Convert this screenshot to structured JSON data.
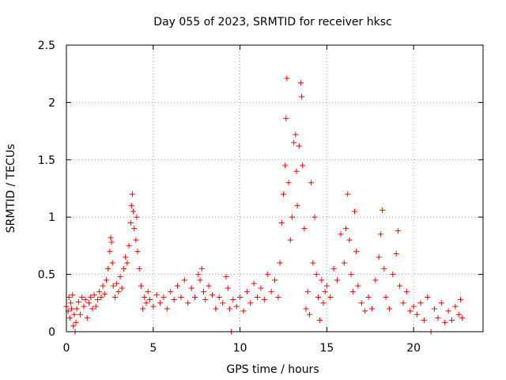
{
  "chart_data": {
    "type": "scatter",
    "title": "Day 055 of 2023, SRMTID for receiver hksc",
    "xlabel": "GPS time / hours",
    "ylabel": "SRMTID / TECUs",
    "xlim": [
      0,
      24
    ],
    "ylim": [
      0,
      2.5
    ],
    "xticks": [
      0,
      5,
      10,
      15,
      20
    ],
    "yticks": [
      0,
      0.5,
      1,
      1.5,
      2,
      2.5
    ],
    "xtick_labels": [
      "0",
      "5",
      "10",
      "15",
      "20"
    ],
    "ytick_labels": [
      "0",
      "0.5",
      "1",
      "1.5",
      "2",
      "2.5"
    ],
    "grid": true,
    "marker": "+",
    "color": "#ff0000",
    "series": [
      {
        "name": "SRMTID",
        "points": [
          [
            0.0,
            0.22
          ],
          [
            0.1,
            0.18
          ],
          [
            0.15,
            0.3
          ],
          [
            0.2,
            0.12
          ],
          [
            0.25,
            0.25
          ],
          [
            0.3,
            0.2
          ],
          [
            0.35,
            0.32
          ],
          [
            0.4,
            0.05
          ],
          [
            0.45,
            0.15
          ],
          [
            0.5,
            0.0
          ],
          [
            0.55,
            0.08
          ],
          [
            0.6,
            0.2
          ],
          [
            0.7,
            0.26
          ],
          [
            0.8,
            0.15
          ],
          [
            0.9,
            0.3
          ],
          [
            1.0,
            0.22
          ],
          [
            1.1,
            0.28
          ],
          [
            1.2,
            0.12
          ],
          [
            1.3,
            0.25
          ],
          [
            1.4,
            0.3
          ],
          [
            1.5,
            0.2
          ],
          [
            1.6,
            0.32
          ],
          [
            1.7,
            0.22
          ],
          [
            1.8,
            0.28
          ],
          [
            1.9,
            0.35
          ],
          [
            2.0,
            0.3
          ],
          [
            2.1,
            0.4
          ],
          [
            2.2,
            0.33
          ],
          [
            2.3,
            0.45
          ],
          [
            2.4,
            0.55
          ],
          [
            2.5,
            0.7
          ],
          [
            2.55,
            0.82
          ],
          [
            2.6,
            0.78
          ],
          [
            2.65,
            0.6
          ],
          [
            2.7,
            0.4
          ],
          [
            2.8,
            0.3
          ],
          [
            2.9,
            0.42
          ],
          [
            3.0,
            0.35
          ],
          [
            3.1,
            0.48
          ],
          [
            3.2,
            0.38
          ],
          [
            3.3,
            0.55
          ],
          [
            3.4,
            0.65
          ],
          [
            3.5,
            0.6
          ],
          [
            3.6,
            0.75
          ],
          [
            3.7,
            0.95
          ],
          [
            3.75,
            1.1
          ],
          [
            3.8,
            1.2
          ],
          [
            3.85,
            1.05
          ],
          [
            3.9,
            0.9
          ],
          [
            4.0,
            0.8
          ],
          [
            4.05,
            1.0
          ],
          [
            4.1,
            0.7
          ],
          [
            4.2,
            0.55
          ],
          [
            4.3,
            0.4
          ],
          [
            4.4,
            0.2
          ],
          [
            4.5,
            0.3
          ],
          [
            4.6,
            0.25
          ],
          [
            4.7,
            0.35
          ],
          [
            4.8,
            0.28
          ],
          [
            5.0,
            0.22
          ],
          [
            5.2,
            0.32
          ],
          [
            5.4,
            0.25
          ],
          [
            5.6,
            0.3
          ],
          [
            5.8,
            0.2
          ],
          [
            6.0,
            0.35
          ],
          [
            6.2,
            0.28
          ],
          [
            6.4,
            0.4
          ],
          [
            6.6,
            0.3
          ],
          [
            6.8,
            0.45
          ],
          [
            7.0,
            0.25
          ],
          [
            7.2,
            0.38
          ],
          [
            7.4,
            0.3
          ],
          [
            7.6,
            0.5
          ],
          [
            7.7,
            0.45
          ],
          [
            7.8,
            0.55
          ],
          [
            7.9,
            0.35
          ],
          [
            8.0,
            0.28
          ],
          [
            8.2,
            0.4
          ],
          [
            8.4,
            0.32
          ],
          [
            8.6,
            0.2
          ],
          [
            8.8,
            0.3
          ],
          [
            9.0,
            0.25
          ],
          [
            9.2,
            0.48
          ],
          [
            9.3,
            0.38
          ],
          [
            9.4,
            0.2
          ],
          [
            9.5,
            0.0
          ],
          [
            9.6,
            0.28
          ],
          [
            9.8,
            0.22
          ],
          [
            10.0,
            0.3
          ],
          [
            10.2,
            0.18
          ],
          [
            10.4,
            0.35
          ],
          [
            10.6,
            0.25
          ],
          [
            10.8,
            0.42
          ],
          [
            11.0,
            0.3
          ],
          [
            11.2,
            0.38
          ],
          [
            11.4,
            0.28
          ],
          [
            11.6,
            0.5
          ],
          [
            11.8,
            0.35
          ],
          [
            12.0,
            0.45
          ],
          [
            12.2,
            0.3
          ],
          [
            12.3,
            0.6
          ],
          [
            12.4,
            0.95
          ],
          [
            12.5,
            1.2
          ],
          [
            12.6,
            1.45
          ],
          [
            12.65,
            1.86
          ],
          [
            12.7,
            2.21
          ],
          [
            12.8,
            1.3
          ],
          [
            12.9,
            0.8
          ],
          [
            13.0,
            1.0
          ],
          [
            13.1,
            1.65
          ],
          [
            13.2,
            1.72
          ],
          [
            13.25,
            1.4
          ],
          [
            13.3,
            1.1
          ],
          [
            13.4,
            1.62
          ],
          [
            13.5,
            2.17
          ],
          [
            13.55,
            2.05
          ],
          [
            13.6,
            1.45
          ],
          [
            13.7,
            0.9
          ],
          [
            13.8,
            0.2
          ],
          [
            13.9,
            0.35
          ],
          [
            14.0,
            0.15
          ],
          [
            14.1,
            1.3
          ],
          [
            14.2,
            0.6
          ],
          [
            14.3,
            1.0
          ],
          [
            14.4,
            0.5
          ],
          [
            14.5,
            0.3
          ],
          [
            14.6,
            0.1
          ],
          [
            14.7,
            0.45
          ],
          [
            14.8,
            0.25
          ],
          [
            14.9,
            0.35
          ],
          [
            15.0,
            0.4
          ],
          [
            15.2,
            0.3
          ],
          [
            15.4,
            0.55
          ],
          [
            15.6,
            0.45
          ],
          [
            15.8,
            0.85
          ],
          [
            16.0,
            0.6
          ],
          [
            16.1,
            0.9
          ],
          [
            16.2,
            1.2
          ],
          [
            16.3,
            0.8
          ],
          [
            16.4,
            0.5
          ],
          [
            16.5,
            0.35
          ],
          [
            16.6,
            1.05
          ],
          [
            16.7,
            0.7
          ],
          [
            16.8,
            0.4
          ],
          [
            17.0,
            0.25
          ],
          [
            17.2,
            0.18
          ],
          [
            17.4,
            0.3
          ],
          [
            17.6,
            0.2
          ],
          [
            17.8,
            0.45
          ],
          [
            18.0,
            0.65
          ],
          [
            18.1,
            0.85
          ],
          [
            18.2,
            1.06
          ],
          [
            18.3,
            0.55
          ],
          [
            18.4,
            0.3
          ],
          [
            18.6,
            0.2
          ],
          [
            18.8,
            0.5
          ],
          [
            19.0,
            0.68
          ],
          [
            19.1,
            0.88
          ],
          [
            19.2,
            0.4
          ],
          [
            19.4,
            0.25
          ],
          [
            19.6,
            0.35
          ],
          [
            19.8,
            0.18
          ],
          [
            20.0,
            0.22
          ],
          [
            20.2,
            0.15
          ],
          [
            20.4,
            0.25
          ],
          [
            20.6,
            0.1
          ],
          [
            20.8,
            0.3
          ],
          [
            21.0,
            0.0
          ],
          [
            21.2,
            0.2
          ],
          [
            21.4,
            0.12
          ],
          [
            21.6,
            0.25
          ],
          [
            21.8,
            0.08
          ],
          [
            22.0,
            0.18
          ],
          [
            22.2,
            0.1
          ],
          [
            22.4,
            0.22
          ],
          [
            22.6,
            0.15
          ],
          [
            22.7,
            0.28
          ],
          [
            22.8,
            0.12
          ]
        ]
      }
    ]
  }
}
